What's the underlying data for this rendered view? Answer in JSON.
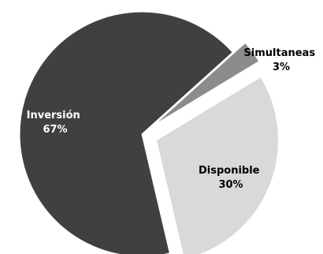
{
  "chart_data": {
    "type": "pie",
    "title": "",
    "legend": "none",
    "slices": [
      {
        "label": "Inversión",
        "value": 67,
        "value_label": "67%",
        "color": "#404040",
        "label_color": "#ffffff",
        "exploded": false
      },
      {
        "label": "Simultaneas",
        "value": 3,
        "value_label": "3%",
        "color": "#8c8c8c",
        "label_color": "#000000",
        "exploded": true
      },
      {
        "label": "Disponible",
        "value": 30,
        "value_label": "30%",
        "color": "#d9d9d9",
        "label_color": "#000000",
        "exploded": true
      }
    ]
  }
}
